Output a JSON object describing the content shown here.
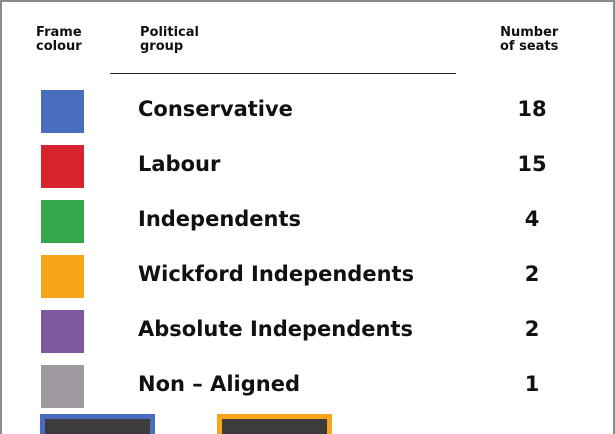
{
  "header": {
    "columns": [
      [
        "Frame",
        "colour"
      ],
      [
        "Political",
        "group"
      ],
      [
        "Number",
        "of seats"
      ]
    ]
  },
  "table": {
    "rows": [
      {
        "color": "#4a6cbf",
        "group": "Conservative",
        "seats": 18
      },
      {
        "color": "#d8232f",
        "group": "Labour",
        "seats": 15
      },
      {
        "color": "#35a64b",
        "group": "Independents",
        "seats": 4
      },
      {
        "color": "#f9a51b",
        "group": "Wickford Independents",
        "seats": 2
      },
      {
        "color": "#7d579f",
        "group": "Absolute Independents",
        "seats": 2
      },
      {
        "color": "#9d999f",
        "group": "Non – Aligned",
        "seats": 1
      }
    ]
  }
}
